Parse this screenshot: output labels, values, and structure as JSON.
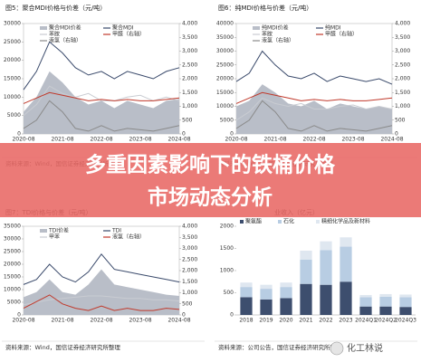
{
  "banner": {
    "lines": [
      "多重因素影响下的铁桶价格",
      "市场动态分析"
    ]
  },
  "sources": [
    "资料来源：Wind，国信证券经济研究所整理",
    "资料来源：Wind，国信证券经济研究所整理",
    "资料来源：Wind，国信证券经济研究所整理",
    "资料来源：公司公告，国信证券经济研究所整理"
  ],
  "watermark": "化工林说",
  "chart_data": [
    {
      "type": "line",
      "title": "图5：聚合MDI价格与价差（元/吨）",
      "categories": [
        "2020-08",
        null,
        null,
        "2021-08",
        null,
        null,
        "2022-08",
        null,
        null,
        "2023-08",
        null,
        null,
        "2024-08"
      ],
      "ylim": [
        0,
        30000
      ],
      "yticks": [
        0,
        5000,
        10000,
        15000,
        20000,
        25000,
        30000
      ],
      "y2lim": [
        0,
        4000
      ],
      "y2ticks": [
        0,
        500,
        {
          "value": 1000,
          "label": "1,000"
        },
        {
          "value": 1500,
          "label": "1,500"
        },
        {
          "value": 2000,
          "label": "2,000"
        },
        {
          "value": 2500,
          "label": "2,500"
        },
        {
          "value": 3000,
          "label": "3,000"
        },
        {
          "value": 3500,
          "label": "3,500"
        },
        {
          "value": 4000,
          "label": "4,000"
        }
      ],
      "series": [
        {
          "name": "聚合MDI价差",
          "kind": "area",
          "color": "#b9bec8",
          "values": [
            6000,
            10000,
            17000,
            14000,
            10000,
            8000,
            9000,
            7000,
            9000,
            8000,
            7000,
            9000,
            9500
          ]
        },
        {
          "name": "聚合MDI",
          "color": "#3a4a6b",
          "values": [
            12000,
            17000,
            25000,
            22000,
            18000,
            16000,
            17000,
            15000,
            17000,
            16000,
            15000,
            17000,
            18000
          ]
        },
        {
          "name": "苯胺",
          "color": "#c9ccd2",
          "values": [
            5000,
            8000,
            13000,
            11000,
            10000,
            11000,
            9000,
            9000,
            10000,
            10500,
            9000,
            10000,
            9000
          ]
        },
        {
          "name": "甲醛（右轴）",
          "axis": "y2",
          "color": "#c0392b",
          "values": [
            1100,
            1300,
            1500,
            1400,
            1300,
            1200,
            1250,
            1200,
            1250,
            1200,
            1200,
            1250,
            1300
          ]
        },
        {
          "name": "液氯（右轴）",
          "axis": "y2",
          "color": "#8a8a8a",
          "values": [
            200,
            500,
            1200,
            800,
            200,
            100,
            300,
            100,
            200,
            150,
            100,
            200,
            300
          ]
        }
      ]
    },
    {
      "type": "line",
      "title": "图6：纯MDI价格与价差（元/吨）",
      "categories": [
        "2020-08",
        null,
        null,
        "2021-08",
        null,
        null,
        "2022-08",
        null,
        null,
        "2023-08",
        null,
        null,
        "2024-08"
      ],
      "ylim": [
        0,
        40000
      ],
      "yticks": [
        0,
        5000,
        10000,
        15000,
        20000,
        25000,
        30000,
        35000,
        40000
      ],
      "y2lim": [
        0,
        4000
      ],
      "y2ticks": [
        0,
        500,
        {
          "value": 1000,
          "label": "1,000"
        },
        {
          "value": 1500,
          "label": "1,500"
        },
        {
          "value": 2000,
          "label": "2,000"
        },
        {
          "value": 2500,
          "label": "2,500"
        },
        {
          "value": 3000,
          "label": "3,000"
        },
        {
          "value": 3500,
          "label": "3,500"
        },
        {
          "value": 4000,
          "label": "4,000"
        }
      ],
      "series": [
        {
          "name": "纯MDI价差",
          "kind": "area",
          "color": "#b9bec8",
          "values": [
            10000,
            12000,
            18000,
            15000,
            11000,
            10000,
            12000,
            9000,
            11000,
            10000,
            9000,
            10000,
            9000
          ]
        },
        {
          "name": "纯MDI",
          "color": "#3a4a6b",
          "values": [
            19000,
            22000,
            30000,
            25000,
            21000,
            20000,
            22000,
            19000,
            21000,
            20000,
            19000,
            20000,
            18000
          ]
        },
        {
          "name": "苯胺",
          "color": "#c9ccd2",
          "values": [
            5000,
            8000,
            13000,
            11000,
            10000,
            11000,
            9000,
            9000,
            10000,
            10500,
            9000,
            10000,
            9000
          ]
        },
        {
          "name": "甲醛（右轴）",
          "axis": "y2",
          "color": "#c0392b",
          "values": [
            1100,
            1300,
            1500,
            1400,
            1300,
            1200,
            1250,
            1200,
            1250,
            1200,
            1200,
            1250,
            1300
          ]
        },
        {
          "name": "液氯（右轴）",
          "axis": "y2",
          "color": "#8a8a8a",
          "values": [
            200,
            500,
            1200,
            800,
            200,
            100,
            300,
            100,
            200,
            150,
            100,
            200,
            300
          ]
        }
      ]
    },
    {
      "type": "line",
      "title": "图7：TDI价格与价差（元/吨）",
      "categories": [
        "2020-08",
        null,
        null,
        "2021-08",
        null,
        null,
        "2022-08",
        null,
        null,
        "2023-08",
        null,
        null,
        "2024-08"
      ],
      "ylim": [
        0,
        35000
      ],
      "yticks": [
        0,
        5000,
        10000,
        15000,
        20000,
        25000,
        30000,
        35000
      ],
      "y2lim": [
        0,
        4000
      ],
      "y2ticks": [
        0,
        500,
        {
          "value": 1000,
          "label": "1,000"
        },
        {
          "value": 1500,
          "label": "1,500"
        },
        {
          "value": 2000,
          "label": "2,000"
        },
        {
          "value": 2500,
          "label": "2,500"
        },
        {
          "value": 3000,
          "label": "3,000"
        },
        {
          "value": 3500,
          "label": "3,500"
        },
        {
          "value": 4000,
          "label": "4,000"
        }
      ],
      "series": [
        {
          "name": "TDI价差",
          "kind": "area",
          "color": "#b9bec8",
          "values": [
            7000,
            9000,
            14000,
            9000,
            8000,
            12000,
            18000,
            12000,
            11000,
            10000,
            9000,
            8000,
            7500
          ]
        },
        {
          "name": "TDI",
          "color": "#3a4a6b",
          "values": [
            12000,
            14000,
            20000,
            15000,
            13000,
            17000,
            24000,
            18000,
            17000,
            16000,
            15000,
            14000,
            13000
          ]
        },
        {
          "name": "甲苯",
          "color": "#c9ccd2",
          "values": [
            4000,
            5000,
            6000,
            6500,
            7000,
            7500,
            7500,
            7000,
            6500,
            6500,
            6000,
            6000,
            5500
          ]
        },
        {
          "name": "液氯（右轴）",
          "axis": "y2",
          "color": "#c0392b",
          "values": [
            300,
            600,
            900,
            500,
            300,
            200,
            400,
            200,
            300,
            200,
            200,
            300,
            250
          ]
        }
      ]
    },
    {
      "type": "stacked-bar",
      "title": "业收入（亿元）",
      "categories": [
        "2018",
        "2019",
        "2020",
        "2021",
        "2022",
        "2023",
        "2024Q1",
        "2024Q2",
        "2024Q3"
      ],
      "ylim": [
        0,
        2000
      ],
      "yticks": [
        0,
        500,
        1000,
        1500,
        2000
      ],
      "series": [
        {
          "name": "聚氨酯",
          "color": "#3d4e6e",
          "values": [
            400,
            350,
            380,
            700,
            680,
            750,
            190,
            190,
            180
          ]
        },
        {
          "name": "石化",
          "color": "#b8cde3",
          "values": [
            230,
            240,
            250,
            550,
            780,
            790,
            210,
            220,
            220
          ]
        },
        {
          "name": "精细化学品及新材料",
          "color": "#dfe7f0",
          "values": [
            100,
            90,
            100,
            200,
            200,
            210,
            50,
            60,
            60
          ]
        }
      ]
    }
  ]
}
